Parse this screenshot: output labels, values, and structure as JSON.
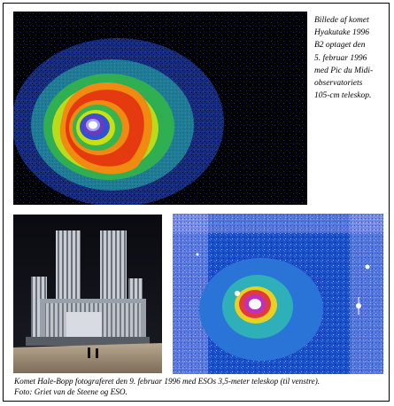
{
  "captions": {
    "hyakutake_lines": [
      "Billede af komet",
      "Hyakutake 1996",
      "B2 optaget den",
      "5. februar 1996",
      "med Pic du Midi-",
      "observatoriets",
      "105-cm teleskop."
    ],
    "halebopp_line1": "Komet Hale-Bopp fotograferet den 9. februar 1996 med ESOs 3,5-meter teleskop (til venstre).",
    "halebopp_line2": "Foto: Griet van de Steene og ESO."
  },
  "colors": {
    "false_color_ramp": [
      "#1a2a8c",
      "#2a5ad8",
      "#33b04a",
      "#c8e010",
      "#f08a10",
      "#e02010",
      "#ffffff"
    ]
  }
}
